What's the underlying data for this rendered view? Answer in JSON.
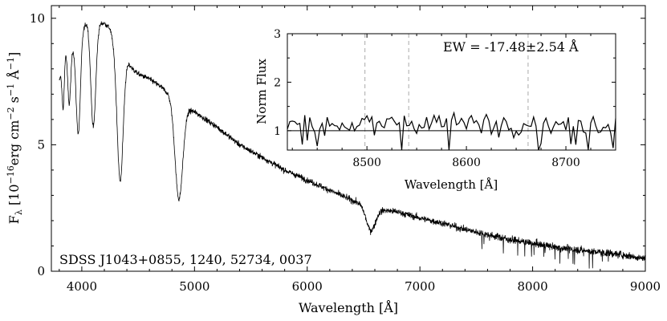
{
  "chart_data": [
    {
      "type": "line",
      "name": "main-spectrum",
      "title": "",
      "annotation": "SDSS J1043+0855, 1240, 52734, 0037",
      "xlabel": "Wavelength [Å]",
      "ylabel": "F",
      "ylabel_sub": "λ",
      "ylabel_units": " [10",
      "ylabel_exp1": "−16",
      "ylabel_mid": "erg cm",
      "ylabel_exp2": "−2",
      "ylabel_s": " s",
      "ylabel_exp3": "−1",
      "ylabel_A": " Å",
      "ylabel_exp4": "−1",
      "ylabel_close": "]",
      "xlim": [
        3730,
        9000
      ],
      "ylim": [
        0,
        10.5
      ],
      "xticks": [
        4000,
        5000,
        6000,
        7000,
        8000,
        9000
      ],
      "xtick_labels": [
        "4000",
        "5000",
        "6000",
        "7000",
        "8000",
        "9000"
      ],
      "yticks": [
        0,
        5,
        10
      ],
      "ytick_labels": [
        "0",
        "5",
        "10"
      ],
      "continuum": {
        "x": [
          3800,
          3850,
          3900,
          3950,
          4000,
          4050,
          4100,
          4150,
          4200,
          4250,
          4300,
          4350,
          4400,
          4450,
          4500,
          4600,
          4700,
          4800,
          4900,
          5000,
          5200,
          5400,
          5600,
          5800,
          6000,
          6200,
          6400,
          6600,
          6800,
          7000,
          7200,
          7400,
          7600,
          7800,
          8000,
          8200,
          8400,
          8600,
          8800,
          9000
        ],
        "y": [
          7.5,
          8.8,
          9.2,
          8.6,
          9.5,
          9.9,
          9.7,
          9.8,
          9.8,
          9.6,
          8.8,
          8.5,
          8.3,
          8.0,
          7.8,
          7.6,
          7.3,
          6.9,
          6.5,
          6.3,
          5.7,
          5.0,
          4.5,
          4.0,
          3.6,
          3.2,
          2.8,
          2.45,
          2.35,
          2.1,
          1.9,
          1.65,
          1.45,
          1.25,
          1.1,
          0.95,
          0.85,
          0.75,
          0.65,
          0.5
        ]
      },
      "absorption_lines": [
        {
          "x": 3835,
          "depth": 2.0,
          "width": 10
        },
        {
          "x": 3889,
          "depth": 2.5,
          "width": 14
        },
        {
          "x": 3970,
          "depth": 3.5,
          "width": 18
        },
        {
          "x": 4102,
          "depth": 4.0,
          "width": 22
        },
        {
          "x": 4340,
          "depth": 5.0,
          "width": 26
        },
        {
          "x": 4861,
          "depth": 3.8,
          "width": 34
        },
        {
          "x": 6563,
          "depth": 0.9,
          "width": 40
        }
      ],
      "noise_model": "sigma grows with wavelength"
    },
    {
      "type": "line",
      "name": "inset-normalized-spectrum",
      "title": "",
      "annotation": "EW = -17.48±2.54 Å",
      "xlabel": "Wavelength [Å]",
      "ylabel": "Norm Flux",
      "xlim": [
        8420,
        8750
      ],
      "ylim": [
        0.6,
        3.0
      ],
      "xticks": [
        8500,
        8600,
        8700
      ],
      "xtick_labels": [
        "8500",
        "8600",
        "8700"
      ],
      "yticks": [
        1,
        2,
        3
      ],
      "ytick_labels": [
        "1",
        "2",
        "3"
      ],
      "reference_line_y": 1,
      "marker_lines_x": [
        8498,
        8542,
        8662
      ],
      "noise_sigma": 0.22
    }
  ]
}
